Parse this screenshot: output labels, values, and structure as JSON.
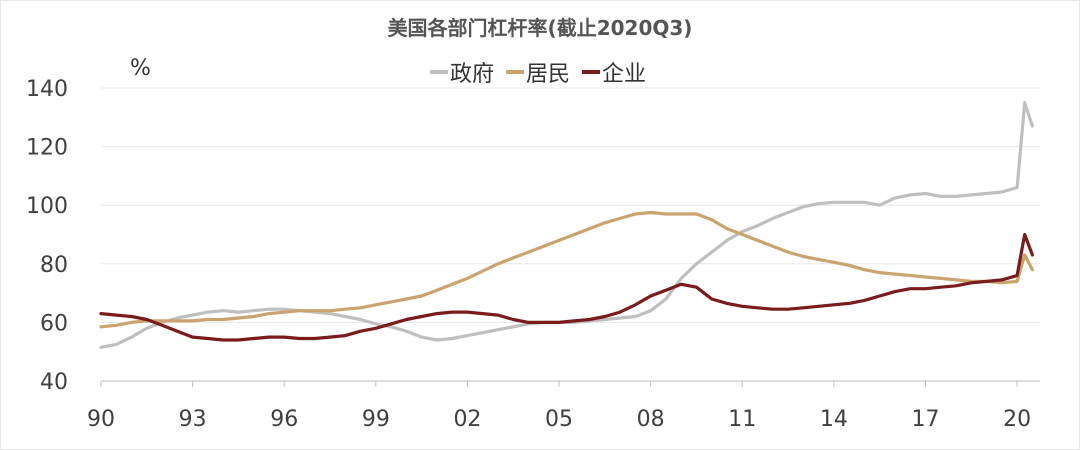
{
  "chart_data": {
    "type": "line",
    "title": "美国各部门杠杆率(截止2020Q3)",
    "ylabel": "%",
    "xlabel": "",
    "ylim": [
      40,
      140
    ],
    "yticks": [
      40,
      60,
      80,
      100,
      120,
      140
    ],
    "xlim": [
      1990,
      2020.75
    ],
    "xticks": [
      {
        "x": 1990,
        "label": "90"
      },
      {
        "x": 1993,
        "label": "93"
      },
      {
        "x": 1996,
        "label": "96"
      },
      {
        "x": 1999,
        "label": "99"
      },
      {
        "x": 2002,
        "label": "02"
      },
      {
        "x": 2005,
        "label": "05"
      },
      {
        "x": 2008,
        "label": "08"
      },
      {
        "x": 2011,
        "label": "11"
      },
      {
        "x": 2014,
        "label": "14"
      },
      {
        "x": 2017,
        "label": "17"
      },
      {
        "x": 2020,
        "label": "20"
      }
    ],
    "grid": "horizontal",
    "legend_position": "top-center",
    "series": [
      {
        "name": "政府",
        "color": "#bfbfbf",
        "points": [
          [
            1990,
            51.5
          ],
          [
            1990.5,
            52.5
          ],
          [
            1991,
            55
          ],
          [
            1991.5,
            58
          ],
          [
            1992,
            60
          ],
          [
            1992.5,
            61.5
          ],
          [
            1993,
            62.5
          ],
          [
            1993.5,
            63.5
          ],
          [
            1994,
            64
          ],
          [
            1994.5,
            63.5
          ],
          [
            1995,
            64
          ],
          [
            1995.5,
            64.5
          ],
          [
            1996,
            64.5
          ],
          [
            1996.5,
            64
          ],
          [
            1997,
            63.5
          ],
          [
            1997.5,
            63
          ],
          [
            1998,
            62
          ],
          [
            1998.5,
            61
          ],
          [
            1999,
            59.5
          ],
          [
            1999.5,
            58.5
          ],
          [
            2000,
            57
          ],
          [
            2000.5,
            55
          ],
          [
            2001,
            54
          ],
          [
            2001.5,
            54.5
          ],
          [
            2002,
            55.5
          ],
          [
            2002.5,
            56.5
          ],
          [
            2003,
            57.5
          ],
          [
            2003.5,
            58.5
          ],
          [
            2004,
            59.5
          ],
          [
            2004.5,
            60
          ],
          [
            2005,
            60
          ],
          [
            2005.5,
            60
          ],
          [
            2006,
            60.5
          ],
          [
            2006.5,
            61
          ],
          [
            2007,
            61.5
          ],
          [
            2007.5,
            62
          ],
          [
            2008,
            64
          ],
          [
            2008.5,
            68
          ],
          [
            2009,
            75
          ],
          [
            2009.5,
            80
          ],
          [
            2010,
            84
          ],
          [
            2010.5,
            88
          ],
          [
            2011,
            91
          ],
          [
            2011.5,
            93
          ],
          [
            2012,
            95.5
          ],
          [
            2012.5,
            97.5
          ],
          [
            2013,
            99.5
          ],
          [
            2013.5,
            100.5
          ],
          [
            2014,
            101
          ],
          [
            2014.5,
            101
          ],
          [
            2015,
            101
          ],
          [
            2015.5,
            100
          ],
          [
            2016,
            102.5
          ],
          [
            2016.5,
            103.5
          ],
          [
            2017,
            104
          ],
          [
            2017.5,
            103
          ],
          [
            2018,
            103
          ],
          [
            2018.5,
            103.5
          ],
          [
            2019,
            104
          ],
          [
            2019.5,
            104.5
          ],
          [
            2020,
            106
          ],
          [
            2020.25,
            135
          ],
          [
            2020.5,
            127
          ]
        ]
      },
      {
        "name": "居民",
        "color": "#c9a46e",
        "points": [
          [
            1990,
            58.5
          ],
          [
            1990.5,
            59
          ],
          [
            1991,
            60
          ],
          [
            1991.5,
            60.5
          ],
          [
            1992,
            60.5
          ],
          [
            1992.5,
            60.5
          ],
          [
            1993,
            60.5
          ],
          [
            1993.5,
            61
          ],
          [
            1994,
            61
          ],
          [
            1994.5,
            61.5
          ],
          [
            1995,
            62
          ],
          [
            1995.5,
            63
          ],
          [
            1996,
            63.5
          ],
          [
            1996.5,
            64
          ],
          [
            1997,
            64
          ],
          [
            1997.5,
            64
          ],
          [
            1998,
            64.5
          ],
          [
            1998.5,
            65
          ],
          [
            1999,
            66
          ],
          [
            1999.5,
            67
          ],
          [
            2000,
            68
          ],
          [
            2000.5,
            69
          ],
          [
            2001,
            71
          ],
          [
            2001.5,
            73
          ],
          [
            2002,
            75
          ],
          [
            2002.5,
            77.5
          ],
          [
            2003,
            80
          ],
          [
            2003.5,
            82
          ],
          [
            2004,
            84
          ],
          [
            2004.5,
            86
          ],
          [
            2005,
            88
          ],
          [
            2005.5,
            90
          ],
          [
            2006,
            92
          ],
          [
            2006.5,
            94
          ],
          [
            2007,
            95.5
          ],
          [
            2007.5,
            97
          ],
          [
            2008,
            97.5
          ],
          [
            2008.5,
            97
          ],
          [
            2009,
            97
          ],
          [
            2009.5,
            97
          ],
          [
            2010,
            95
          ],
          [
            2010.5,
            92
          ],
          [
            2011,
            90
          ],
          [
            2011.5,
            88
          ],
          [
            2012,
            86
          ],
          [
            2012.5,
            84
          ],
          [
            2013,
            82.5
          ],
          [
            2013.5,
            81.5
          ],
          [
            2014,
            80.5
          ],
          [
            2014.5,
            79.5
          ],
          [
            2015,
            78
          ],
          [
            2015.5,
            77
          ],
          [
            2016,
            76.5
          ],
          [
            2016.5,
            76
          ],
          [
            2017,
            75.5
          ],
          [
            2017.5,
            75
          ],
          [
            2018,
            74.5
          ],
          [
            2018.5,
            74
          ],
          [
            2019,
            74
          ],
          [
            2019.5,
            73.5
          ],
          [
            2020,
            74
          ],
          [
            2020.25,
            83
          ],
          [
            2020.5,
            78
          ]
        ]
      },
      {
        "name": "企业",
        "color": "#7b1c1c",
        "points": [
          [
            1990,
            63
          ],
          [
            1990.5,
            62.5
          ],
          [
            1991,
            62
          ],
          [
            1991.5,
            61
          ],
          [
            1992,
            59
          ],
          [
            1992.5,
            57
          ],
          [
            1993,
            55
          ],
          [
            1993.5,
            54.5
          ],
          [
            1994,
            54
          ],
          [
            1994.5,
            54
          ],
          [
            1995,
            54.5
          ],
          [
            1995.5,
            55
          ],
          [
            1996,
            55
          ],
          [
            1996.5,
            54.5
          ],
          [
            1997,
            54.5
          ],
          [
            1997.5,
            55
          ],
          [
            1998,
            55.5
          ],
          [
            1998.5,
            57
          ],
          [
            1999,
            58
          ],
          [
            1999.5,
            59.5
          ],
          [
            2000,
            61
          ],
          [
            2000.5,
            62
          ],
          [
            2001,
            63
          ],
          [
            2001.5,
            63.5
          ],
          [
            2002,
            63.5
          ],
          [
            2002.5,
            63
          ],
          [
            2003,
            62.5
          ],
          [
            2003.5,
            61
          ],
          [
            2004,
            60
          ],
          [
            2004.5,
            60
          ],
          [
            2005,
            60
          ],
          [
            2005.5,
            60.5
          ],
          [
            2006,
            61
          ],
          [
            2006.5,
            62
          ],
          [
            2007,
            63.5
          ],
          [
            2007.5,
            66
          ],
          [
            2008,
            69
          ],
          [
            2008.5,
            71
          ],
          [
            2009,
            73
          ],
          [
            2009.5,
            72
          ],
          [
            2010,
            68
          ],
          [
            2010.5,
            66.5
          ],
          [
            2011,
            65.5
          ],
          [
            2011.5,
            65
          ],
          [
            2012,
            64.5
          ],
          [
            2012.5,
            64.5
          ],
          [
            2013,
            65
          ],
          [
            2013.5,
            65.5
          ],
          [
            2014,
            66
          ],
          [
            2014.5,
            66.5
          ],
          [
            2015,
            67.5
          ],
          [
            2015.5,
            69
          ],
          [
            2016,
            70.5
          ],
          [
            2016.5,
            71.5
          ],
          [
            2017,
            71.5
          ],
          [
            2017.5,
            72
          ],
          [
            2018,
            72.5
          ],
          [
            2018.5,
            73.5
          ],
          [
            2019,
            74
          ],
          [
            2019.5,
            74.5
          ],
          [
            2020,
            76
          ],
          [
            2020.25,
            90
          ],
          [
            2020.5,
            83
          ]
        ]
      }
    ]
  }
}
